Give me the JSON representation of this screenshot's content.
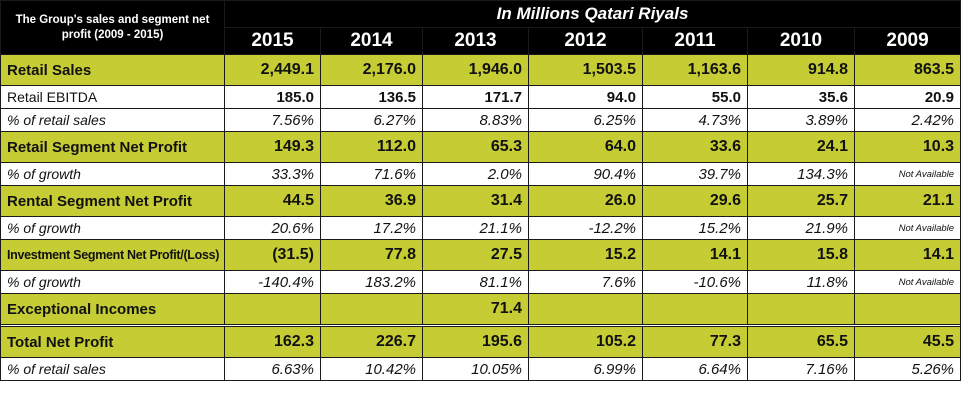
{
  "header": {
    "corner_title": "The Group's sales and segment net profit (2009 - 2015)",
    "units": "In Millions Qatari Riyals",
    "years": [
      "2015",
      "2014",
      "2013",
      "2012",
      "2011",
      "2010",
      "2009"
    ]
  },
  "colors": {
    "highlight": "#c6cc34",
    "header_bg": "#000000",
    "header_text": "#ffffff"
  },
  "chart_data": {
    "type": "table",
    "title": "The Group's sales and segment net profit (2009 - 2015)",
    "subtitle": "In Millions Qatari Riyals",
    "columns": [
      "2015",
      "2014",
      "2013",
      "2012",
      "2011",
      "2010",
      "2009"
    ],
    "rows": [
      {
        "label": "Retail Sales",
        "style": "bold",
        "values": [
          "2,449.1",
          "2,176.0",
          "1,946.0",
          "1,503.5",
          "1,163.6",
          "914.8",
          "863.5"
        ]
      },
      {
        "label": "Retail EBITDA",
        "style": "plain",
        "values": [
          "185.0",
          "136.5",
          "171.7",
          "94.0",
          "55.0",
          "35.6",
          "20.9"
        ]
      },
      {
        "label": "% of retail sales",
        "style": "pct",
        "values": [
          "7.56%",
          "6.27%",
          "8.83%",
          "6.25%",
          "4.73%",
          "3.89%",
          "2.42%"
        ]
      },
      {
        "label": "Retail Segment Net Profit",
        "style": "bold",
        "values": [
          "149.3",
          "112.0",
          "65.3",
          "64.0",
          "33.6",
          "24.1",
          "10.3"
        ]
      },
      {
        "label": "% of growth",
        "style": "pct",
        "values": [
          "33.3%",
          "71.6%",
          "2.0%",
          "90.4%",
          "39.7%",
          "134.3%",
          "Not Available"
        ]
      },
      {
        "label": "Rental Segment Net Profit",
        "style": "bold",
        "values": [
          "44.5",
          "36.9",
          "31.4",
          "26.0",
          "29.6",
          "25.7",
          "21.1"
        ]
      },
      {
        "label": "% of growth",
        "style": "pct",
        "values": [
          "20.6%",
          "17.2%",
          "21.1%",
          "-12.2%",
          "15.2%",
          "21.9%",
          "Not Available"
        ]
      },
      {
        "label": "Investment Segment Net Profit/(Loss)",
        "style": "bold",
        "narrow": true,
        "values": [
          "(31.5)",
          "77.8",
          "27.5",
          "15.2",
          "14.1",
          "15.8",
          "14.1"
        ]
      },
      {
        "label": "% of growth",
        "style": "pct",
        "values": [
          "-140.4%",
          "183.2%",
          "81.1%",
          "7.6%",
          "-10.6%",
          "11.8%",
          "Not Available"
        ]
      },
      {
        "label": "Exceptional Incomes",
        "style": "bold",
        "values": [
          "",
          "",
          "71.4",
          "",
          "",
          "",
          ""
        ]
      },
      {
        "label": "Total Net Profit",
        "style": "bold",
        "spacer_before": true,
        "values": [
          "162.3",
          "226.7",
          "195.6",
          "105.2",
          "77.3",
          "65.5",
          "45.5"
        ]
      },
      {
        "label": "% of retail sales",
        "style": "pct",
        "values": [
          "6.63%",
          "10.42%",
          "10.05%",
          "6.99%",
          "6.64%",
          "7.16%",
          "5.26%"
        ]
      }
    ]
  }
}
